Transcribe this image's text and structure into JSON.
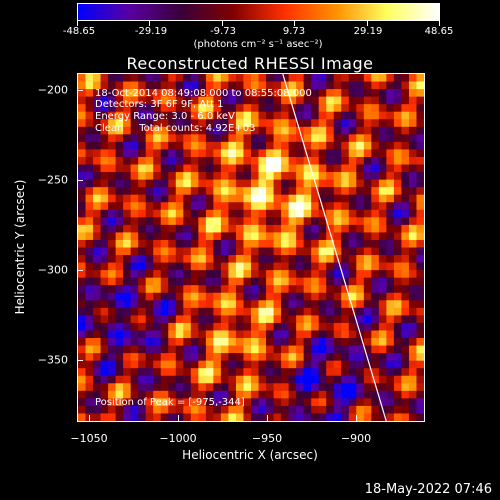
{
  "colorbar": {
    "tick_labels": [
      "-48.65",
      "-29.19",
      "-9.73",
      "9.73",
      "29.19",
      "48.65"
    ],
    "units": "(photons cm⁻² s⁻¹ asec⁻²)",
    "colors": [
      "#0000ff",
      "#5a00a0",
      "#3a003a",
      "#800000",
      "#ff3000",
      "#ff9000",
      "#ffff60",
      "#ffffff"
    ]
  },
  "title": "Reconstructed RHESSI Image",
  "overlay": {
    "time_range": "18-Oct-2014 08:49:08.000 to 08:55:08.000",
    "detectors": "Detectors: 3F 6F 9F, Att 1",
    "energy": "Energy Range: 3.0 - 6.0 keV",
    "method": "Clean     Total counts: 4.92E+03",
    "peak": "Position of Peak = [-975,-344]"
  },
  "axes": {
    "x_label": "Heliocentric X (arcsec)",
    "y_label": "Heliocentric Y (arcsec)",
    "x_ticks": [
      "−1050",
      "−1000",
      "−950",
      "−900"
    ],
    "y_ticks": [
      "−200",
      "−250",
      "−300",
      "−350"
    ],
    "x_range": [
      -1057,
      -863
    ],
    "y_range": [
      -385,
      -190
    ]
  },
  "timestamp": "18-May-2022 07:46"
}
